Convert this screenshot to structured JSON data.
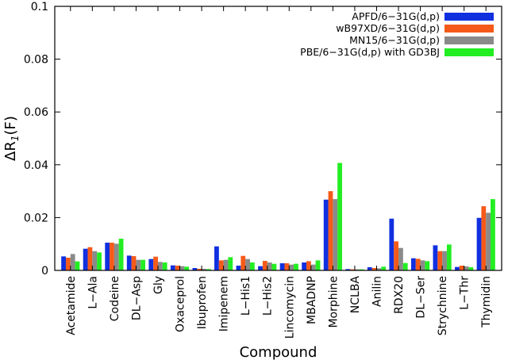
{
  "chart_data": {
    "type": "bar",
    "xlabel": "Compound",
    "ylabel_prefix": "ΔR",
    "ylabel_sub": "1",
    "ylabel_suffix": "(F)",
    "ylim": [
      0,
      0.1
    ],
    "yticks": [
      "0",
      "0.02",
      "0.04",
      "0.06",
      "0.08",
      "0.1"
    ],
    "ytick_values": [
      0,
      0.02,
      0.04,
      0.06,
      0.08,
      0.1
    ],
    "grid": false,
    "legend_position": "top-right",
    "categories": [
      "Acetamide",
      "L-Ala",
      "Codeine",
      "DL-Asp",
      "Gly",
      "Oxaceprol",
      "Ibuprofen",
      "Imipenem",
      "L-His1",
      "L-His2",
      "Lincomycin",
      "MBADNP",
      "Morphine",
      "NCLBA",
      "Anilin",
      "RDX20",
      "DL-Ser",
      "Strychnine",
      "L-Thr",
      "Thymidin"
    ],
    "category_labels": [
      "Acetamide",
      "L−Ala",
      "Codeine",
      "DL−Asp",
      "Gly",
      "Oxaceprol",
      "Ibuprofen",
      "Imipenem",
      "L−His1",
      "L−His2",
      "Lincomycin",
      "MBADNP",
      "Morphine",
      "NCLBA",
      "Anilin",
      "RDX20",
      "DL−Ser",
      "Strychnine",
      "L−Thr",
      "Thymidin"
    ],
    "series": [
      {
        "name": "APFD/6−31G(d,p)",
        "color": "#1030e0",
        "values": [
          0.0053,
          0.0082,
          0.0105,
          0.0056,
          0.0043,
          0.0019,
          0.0009,
          0.0091,
          0.0018,
          0.0016,
          0.0027,
          0.003,
          0.0268,
          0.0005,
          0.0012,
          0.0196,
          0.0046,
          0.0095,
          0.0013,
          0.0199
        ]
      },
      {
        "name": "wB97XD/6−31G(d,p)",
        "color": "#f55a1a",
        "values": [
          0.0048,
          0.0088,
          0.0105,
          0.0054,
          0.0052,
          0.0018,
          0.0006,
          0.0038,
          0.0055,
          0.0036,
          0.0027,
          0.0035,
          0.03,
          0.0004,
          0.0009,
          0.011,
          0.0044,
          0.0073,
          0.0018,
          0.0243
        ]
      },
      {
        "name": "MN15/6−31G(d,p)",
        "color": "#8a8a8a",
        "values": [
          0.0062,
          0.0073,
          0.0101,
          0.004,
          0.0032,
          0.0016,
          0.0006,
          0.004,
          0.0043,
          0.003,
          0.0022,
          0.0022,
          0.027,
          0.0004,
          0.0008,
          0.0085,
          0.0038,
          0.0073,
          0.0015,
          0.0218
        ]
      },
      {
        "name": "PBE/6−31G(d,p) with GD3BJ",
        "color": "#22ee22",
        "values": [
          0.0034,
          0.0068,
          0.012,
          0.004,
          0.003,
          0.0014,
          0.0005,
          0.005,
          0.003,
          0.0025,
          0.0025,
          0.0038,
          0.0407,
          0.0004,
          0.0014,
          0.0028,
          0.0035,
          0.0098,
          0.0012,
          0.027
        ]
      }
    ]
  }
}
